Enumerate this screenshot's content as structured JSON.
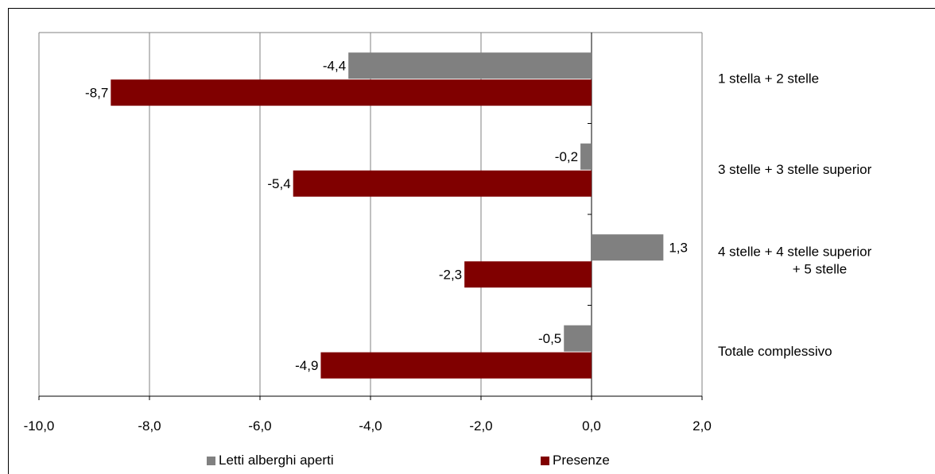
{
  "chart_data": {
    "type": "bar",
    "orientation": "horizontal",
    "categories": [
      [
        "1 stella + 2 stelle"
      ],
      [
        "3 stelle + 3 stelle superior"
      ],
      [
        "4 stelle + 4 stelle superior",
        "+ 5 stelle"
      ],
      [
        "Totale complessivo"
      ]
    ],
    "series": [
      {
        "name": "Letti alberghi aperti",
        "color": "#808080",
        "values": [
          -4.4,
          -0.2,
          1.3,
          -0.5
        ],
        "labels": [
          "-4,4",
          "-0,2",
          "1,3",
          "-0,5"
        ]
      },
      {
        "name": "Presenze",
        "color": "#800000",
        "values": [
          -8.7,
          -5.4,
          -2.3,
          -4.9
        ],
        "labels": [
          "-8,7",
          "-5,4",
          "-2,3",
          "-4,9"
        ]
      }
    ],
    "xlim": [
      -10,
      2
    ],
    "xticks": [
      -10,
      -8,
      -6,
      -4,
      -2,
      0,
      2
    ],
    "xtick_labels": [
      "-10,0",
      "-8,0",
      "-6,0",
      "-4,0",
      "-2,0",
      "0,0",
      "2,0"
    ],
    "grid": "vertical",
    "legend_position": "bottom",
    "title": "",
    "xlabel": "",
    "ylabel": ""
  }
}
